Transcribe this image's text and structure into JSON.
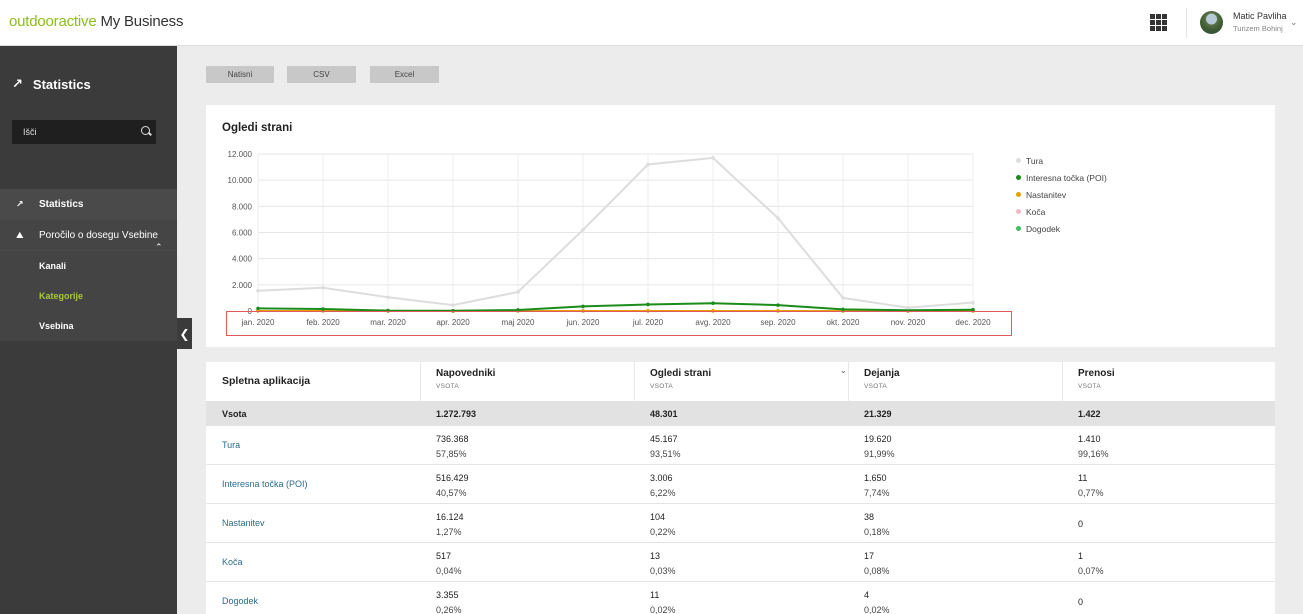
{
  "header": {
    "brand": "outdooractive",
    "product": "My Business",
    "user_name": "Matic Pavliha",
    "user_org": "Turizem Bohinj"
  },
  "sidebar": {
    "title": "Statistics",
    "search_placeholder": "Išči",
    "items": [
      {
        "label": "Statistics"
      },
      {
        "label": "Poročilo o dosegu Vsebine"
      }
    ],
    "subitems": [
      {
        "label": "Kanali"
      },
      {
        "label": "Kategorije"
      },
      {
        "label": "Vsebina"
      }
    ]
  },
  "toolbar": {
    "print_label": "Natisni",
    "csv_label": "CSV",
    "excel_label": "Excel"
  },
  "chart_data": {
    "type": "line",
    "title": "Ogledi strani",
    "categories": [
      "jan. 2020",
      "feb. 2020",
      "mar. 2020",
      "apr. 2020",
      "maj 2020",
      "jun. 2020",
      "jul. 2020",
      "avg. 2020",
      "sep. 2020",
      "okt. 2020",
      "nov. 2020",
      "dec. 2020"
    ],
    "y_ticks": [
      "0",
      "2.000",
      "4.000",
      "6.000",
      "8.000",
      "10.000",
      "12.000"
    ],
    "ylim": [
      0,
      12000
    ],
    "grid": true,
    "legend_position": "right",
    "series": [
      {
        "name": "Tura",
        "color": "#dddddd",
        "values": [
          1550,
          1780,
          1050,
          450,
          1450,
          6200,
          11200,
          11700,
          7100,
          1000,
          250,
          650
        ]
      },
      {
        "name": "Interesna točka (POI)",
        "color": "#1a8c1a",
        "values": [
          200,
          150,
          30,
          20,
          80,
          350,
          500,
          600,
          450,
          120,
          50,
          100
        ]
      },
      {
        "name": "Nastanitev",
        "color": "#e8a000",
        "values": [
          20,
          20,
          10,
          5,
          10,
          15,
          20,
          20,
          15,
          10,
          5,
          10
        ]
      },
      {
        "name": "Koča",
        "color": "#f2b8c6",
        "values": [
          2,
          2,
          1,
          0,
          1,
          1,
          2,
          2,
          2,
          1,
          0,
          1
        ]
      },
      {
        "name": "Dogodek",
        "color": "#44bb66",
        "values": [
          2,
          1,
          1,
          0,
          1,
          1,
          1,
          1,
          1,
          1,
          0,
          1
        ]
      }
    ]
  },
  "table": {
    "first_header": "Spletna aplikacija",
    "columns": [
      {
        "name": "Napovedniki",
        "sub": "VSOTA"
      },
      {
        "name": "Ogledi strani",
        "sub": "VSOTA"
      },
      {
        "name": "Dejanja",
        "sub": "VSOTA"
      },
      {
        "name": "Prenosi",
        "sub": "VSOTA"
      }
    ],
    "total": {
      "label": "Vsota",
      "values": [
        "1.272.793",
        "48.301",
        "21.329",
        "1.422"
      ]
    },
    "rows": [
      {
        "label": "Tura",
        "cells": [
          {
            "v": "736.368",
            "p": "57,85%"
          },
          {
            "v": "45.167",
            "p": "93,51%"
          },
          {
            "v": "19.620",
            "p": "91,99%"
          },
          {
            "v": "1.410",
            "p": "99,16%"
          }
        ]
      },
      {
        "label": "Interesna točka (POI)",
        "cells": [
          {
            "v": "516.429",
            "p": "40,57%"
          },
          {
            "v": "3.006",
            "p": "6,22%"
          },
          {
            "v": "1.650",
            "p": "7,74%"
          },
          {
            "v": "11",
            "p": "0,77%"
          }
        ]
      },
      {
        "label": "Nastanitev",
        "cells": [
          {
            "v": "16.124",
            "p": "1,27%"
          },
          {
            "v": "104",
            "p": "0,22%"
          },
          {
            "v": "38",
            "p": "0,18%"
          },
          {
            "v": "0",
            "p": ""
          }
        ]
      },
      {
        "label": "Koča",
        "cells": [
          {
            "v": "517",
            "p": "0,04%"
          },
          {
            "v": "13",
            "p": "0,03%"
          },
          {
            "v": "17",
            "p": "0,08%"
          },
          {
            "v": "1",
            "p": "0,07%"
          }
        ]
      },
      {
        "label": "Dogodek",
        "cells": [
          {
            "v": "3.355",
            "p": "0,26%"
          },
          {
            "v": "11",
            "p": "0,02%"
          },
          {
            "v": "4",
            "p": "0,02%"
          },
          {
            "v": "0",
            "p": ""
          }
        ]
      }
    ]
  }
}
